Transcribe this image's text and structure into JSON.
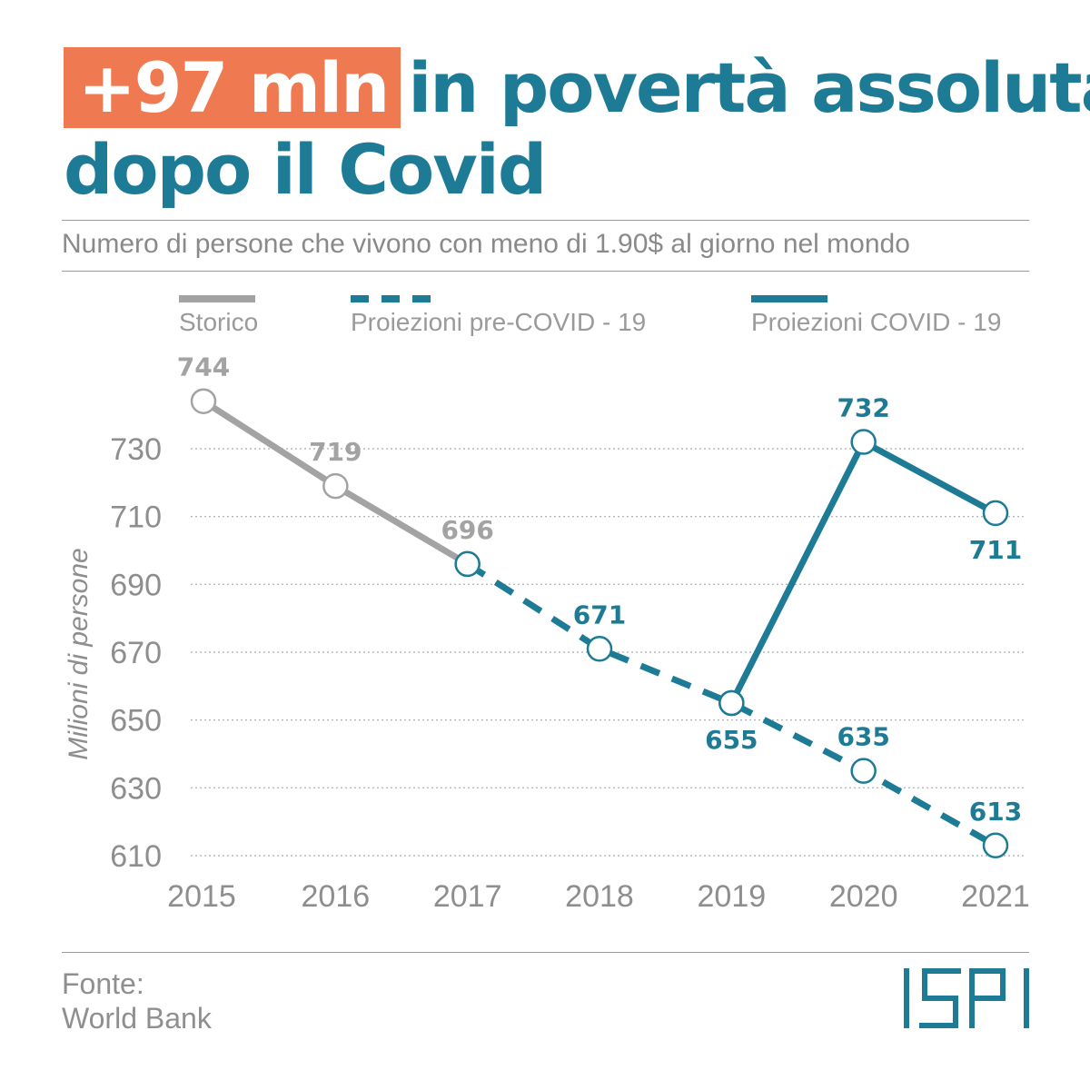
{
  "header": {
    "highlight": "+97 mln",
    "title_line1_rest": "in povertà assoluta",
    "title_line2": "dopo il Covid",
    "subtitle": "Numero di persone che vivono con meno di 1.90$ al giorno nel mondo"
  },
  "legend": [
    {
      "label": "Storico",
      "style": "solid",
      "color": "#a3a3a3"
    },
    {
      "label": "Proiezioni pre-COVID - 19",
      "style": "dashed",
      "color": "#1d7b96"
    },
    {
      "label": "Proiezioni COVID - 19",
      "style": "solid",
      "color": "#1d7b96"
    }
  ],
  "source": {
    "line1": "Fonte:",
    "line2": "World Bank"
  },
  "logo": {
    "text": "ISPI",
    "color": "#1d7b96"
  },
  "colors": {
    "highlight_bg": "#ef7a52",
    "brand": "#1d7b96",
    "history": "#a3a3a3"
  },
  "chart_data": {
    "type": "line",
    "x": [
      2015,
      2016,
      2017,
      2018,
      2019,
      2020,
      2021
    ],
    "ylabel": "Milioni di persone",
    "ylim": [
      610,
      745
    ],
    "yticks": [
      610,
      630,
      650,
      670,
      690,
      710,
      730
    ],
    "grid": true,
    "legend_position": "top",
    "series": [
      {
        "name": "Storico",
        "style": "solid",
        "color": "#a3a3a3",
        "points": [
          [
            2015,
            744
          ],
          [
            2016,
            719
          ],
          [
            2017,
            696
          ]
        ]
      },
      {
        "name": "Proiezioni pre-COVID - 19",
        "style": "dashed",
        "color": "#1d7b96",
        "points": [
          [
            2017,
            696
          ],
          [
            2018,
            671
          ],
          [
            2019,
            655
          ],
          [
            2020,
            635
          ],
          [
            2021,
            613
          ]
        ]
      },
      {
        "name": "Proiezioni COVID - 19",
        "style": "solid",
        "color": "#1d7b96",
        "points": [
          [
            2019,
            655
          ],
          [
            2020,
            732
          ],
          [
            2021,
            711
          ]
        ]
      }
    ],
    "data_labels": [
      {
        "x": 2015,
        "y": 744,
        "text": "744",
        "color": "#a3a3a3",
        "pos": "above"
      },
      {
        "x": 2016,
        "y": 719,
        "text": "719",
        "color": "#a3a3a3",
        "pos": "above"
      },
      {
        "x": 2017,
        "y": 696,
        "text": "696",
        "color": "#a3a3a3",
        "pos": "above"
      },
      {
        "x": 2018,
        "y": 671,
        "text": "671",
        "color": "#1d7b96",
        "pos": "above"
      },
      {
        "x": 2019,
        "y": 655,
        "text": "655",
        "color": "#1d7b96",
        "pos": "below"
      },
      {
        "x": 2020,
        "y": 635,
        "text": "635",
        "color": "#1d7b96",
        "pos": "above"
      },
      {
        "x": 2021,
        "y": 613,
        "text": "613",
        "color": "#1d7b96",
        "pos": "above"
      },
      {
        "x": 2020,
        "y": 732,
        "text": "732",
        "color": "#1d7b96",
        "pos": "above"
      },
      {
        "x": 2021,
        "y": 711,
        "text": "711",
        "color": "#1d7b96",
        "pos": "below"
      }
    ]
  }
}
